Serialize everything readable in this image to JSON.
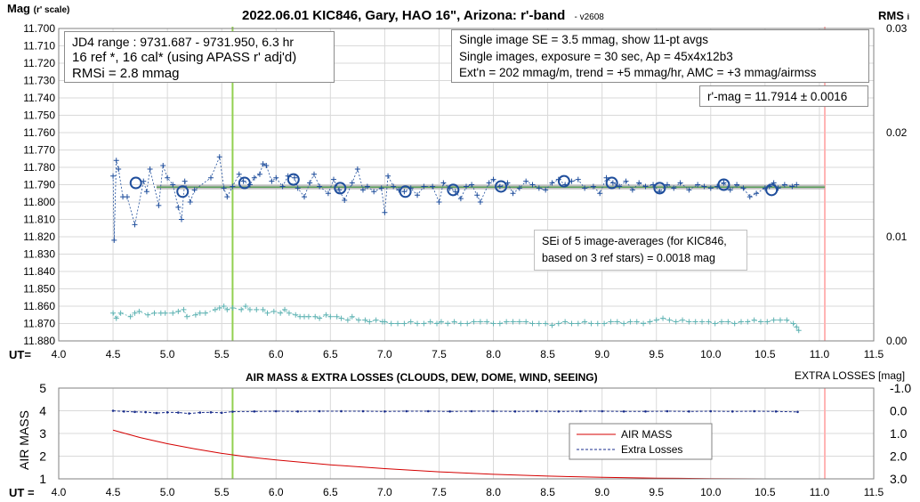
{
  "chart_data": [
    {
      "type": "scatter",
      "title": "2022.06.01 KIC846, Gary, HAO 16\", Arizona: r'-band",
      "version_tag": "- v2608",
      "ylabel": "Mag",
      "ylabel_suffix": "(r' scale)",
      "y2label": "RMS",
      "y2label_suffix": "i",
      "xlabel": "UT=",
      "xlim": [
        4.0,
        11.5
      ],
      "ylim": [
        11.7,
        11.88
      ],
      "ylim_inverted": true,
      "y2lim": [
        0.0,
        0.03
      ],
      "x_ticks": [
        "4.0",
        "4.5",
        "5.0",
        "5.5",
        "6.0",
        "6.5",
        "7.0",
        "7.5",
        "8.0",
        "8.5",
        "9.0",
        "9.5",
        "10.0",
        "10.5",
        "11.0",
        "11.5"
      ],
      "y_ticks": [
        "11.700",
        "11.710",
        "11.720",
        "11.730",
        "11.740",
        "11.750",
        "11.760",
        "11.770",
        "11.780",
        "11.790",
        "11.800",
        "11.810",
        "11.820",
        "11.830",
        "11.840",
        "11.850",
        "11.860",
        "11.870",
        "11.880"
      ],
      "y2_ticks": [
        "0.03",
        "0.02",
        "0.01",
        "0.00"
      ],
      "y2_tick_values": [
        0.03,
        0.02,
        0.01,
        0.0
      ],
      "grid": true,
      "vertical_markers": [
        {
          "x": 5.6,
          "color": "#92d050"
        },
        {
          "x": 11.05,
          "color": "#ffb3b3"
        }
      ],
      "fit_level": 11.7914,
      "fit_xrange": [
        4.9,
        11.05
      ],
      "series": [
        {
          "marker": "plus-dashed",
          "color": "#1f4e9c",
          "x": [
            4.5,
            4.51,
            4.53,
            4.55,
            4.59,
            4.63,
            4.7,
            4.78,
            4.81,
            4.84,
            4.92,
            4.96,
            5.0,
            5.05,
            5.1,
            5.13,
            5.16,
            5.21,
            5.25,
            5.4,
            5.48,
            5.52,
            5.55,
            5.6,
            5.66,
            5.7,
            5.76,
            5.8,
            5.85,
            5.88,
            5.91,
            5.96,
            6.0,
            6.06,
            6.11,
            6.17,
            6.2,
            6.26,
            6.31,
            6.35,
            6.4,
            6.48,
            6.53,
            6.58,
            6.63,
            6.7,
            6.75,
            6.8,
            6.84,
            6.9,
            6.97,
            7.0,
            7.03,
            7.08,
            7.13,
            7.18,
            7.24,
            7.3,
            7.36,
            7.44,
            7.5,
            7.54,
            7.6,
            7.65,
            7.7,
            7.75,
            7.8,
            7.85,
            7.88,
            7.96,
            8.0,
            8.06,
            8.13,
            8.18,
            8.24,
            8.3,
            8.36,
            8.42,
            8.48,
            8.54,
            8.6,
            8.66,
            8.72,
            8.78,
            8.84,
            8.92,
            8.98,
            9.04,
            9.1,
            9.16,
            9.22,
            9.28,
            9.34,
            9.4,
            9.47,
            9.53,
            9.6,
            9.66,
            9.72,
            9.8,
            9.88,
            9.94,
            10.0,
            10.06,
            10.12,
            10.18,
            10.24,
            10.3,
            10.36,
            10.42,
            10.5,
            10.54,
            10.58,
            10.62,
            10.68,
            10.75,
            10.79
          ],
          "values": [
            11.785,
            11.822,
            11.776,
            11.781,
            11.797,
            11.797,
            11.813,
            11.788,
            11.794,
            11.781,
            11.802,
            11.779,
            11.786,
            11.79,
            11.803,
            11.81,
            11.788,
            11.8,
            11.793,
            11.786,
            11.774,
            11.792,
            11.797,
            11.791,
            11.784,
            11.788,
            11.79,
            11.786,
            11.784,
            11.778,
            11.779,
            11.788,
            11.786,
            11.791,
            11.785,
            11.786,
            11.792,
            11.797,
            11.789,
            11.784,
            11.791,
            11.795,
            11.787,
            11.793,
            11.799,
            11.789,
            11.781,
            11.793,
            11.791,
            11.794,
            11.792,
            11.806,
            11.785,
            11.791,
            11.793,
            11.794,
            11.792,
            11.796,
            11.791,
            11.791,
            11.8,
            11.789,
            11.792,
            11.794,
            11.798,
            11.791,
            11.79,
            11.796,
            11.8,
            11.789,
            11.787,
            11.791,
            11.789,
            11.795,
            11.792,
            11.788,
            11.79,
            11.792,
            11.793,
            11.789,
            11.787,
            11.79,
            11.788,
            11.787,
            11.792,
            11.791,
            11.795,
            11.786,
            11.789,
            11.791,
            11.788,
            11.793,
            11.789,
            11.791,
            11.79,
            11.794,
            11.79,
            11.792,
            11.789,
            11.793,
            11.79,
            11.791,
            11.792,
            11.791,
            11.789,
            11.793,
            11.79,
            11.792,
            11.797,
            11.795,
            11.792,
            11.791,
            11.789,
            11.792,
            11.79,
            11.791,
            11.79
          ]
        },
        {
          "marker": "circle",
          "color": "#1f4e9c",
          "x": [
            4.71,
            5.14,
            5.71,
            6.16,
            6.59,
            7.19,
            7.63,
            8.07,
            8.65,
            9.09,
            9.53,
            10.12,
            10.56
          ],
          "values": [
            11.789,
            11.794,
            11.789,
            11.787,
            11.792,
            11.794,
            11.793,
            11.791,
            11.788,
            11.789,
            11.792,
            11.79,
            11.793
          ]
        },
        {
          "marker": "plus-dashed",
          "color": "#5fb3b3",
          "x": [
            4.5,
            4.53,
            4.57,
            4.66,
            4.7,
            4.74,
            4.82,
            4.88,
            4.94,
            4.98,
            5.05,
            5.1,
            5.15,
            5.18,
            5.26,
            5.3,
            5.35,
            5.44,
            5.48,
            5.52,
            5.55,
            5.6,
            5.68,
            5.72,
            5.76,
            5.82,
            5.88,
            5.92,
            5.98,
            6.04,
            6.08,
            6.12,
            6.18,
            6.22,
            6.26,
            6.3,
            6.36,
            6.4,
            6.46,
            6.5,
            6.56,
            6.6,
            6.66,
            6.7,
            6.76,
            6.82,
            6.86,
            6.92,
            6.98,
            7.0,
            7.06,
            7.12,
            7.18,
            7.24,
            7.3,
            7.36,
            7.42,
            7.48,
            7.52,
            7.58,
            7.64,
            7.7,
            7.76,
            7.82,
            7.88,
            7.94,
            8.0,
            8.06,
            8.12,
            8.18,
            8.24,
            8.3,
            8.36,
            8.42,
            8.48,
            8.54,
            8.6,
            8.66,
            8.72,
            8.78,
            8.84,
            8.9,
            8.96,
            9.02,
            9.08,
            9.14,
            9.2,
            9.26,
            9.32,
            9.38,
            9.44,
            9.5,
            9.56,
            9.62,
            9.68,
            9.74,
            9.8,
            9.86,
            9.92,
            9.98,
            10.04,
            10.1,
            10.16,
            10.22,
            10.28,
            10.34,
            10.4,
            10.46,
            10.52,
            10.58,
            10.64,
            10.7,
            10.76,
            10.79,
            10.81
          ],
          "values": [
            11.864,
            11.867,
            11.864,
            11.866,
            11.864,
            11.863,
            11.865,
            11.864,
            11.864,
            11.864,
            11.864,
            11.863,
            11.862,
            11.866,
            11.865,
            11.864,
            11.864,
            11.862,
            11.861,
            11.86,
            11.862,
            11.861,
            11.862,
            11.86,
            11.862,
            11.862,
            11.862,
            11.864,
            11.863,
            11.864,
            11.862,
            11.864,
            11.865,
            11.866,
            11.866,
            11.866,
            11.866,
            11.867,
            11.865,
            11.866,
            11.866,
            11.867,
            11.868,
            11.866,
            11.868,
            11.868,
            11.869,
            11.868,
            11.869,
            11.869,
            11.87,
            11.87,
            11.87,
            11.869,
            11.87,
            11.87,
            11.869,
            11.87,
            11.869,
            11.87,
            11.869,
            11.87,
            11.87,
            11.869,
            11.869,
            11.869,
            11.87,
            11.87,
            11.869,
            11.869,
            11.869,
            11.869,
            11.87,
            11.87,
            11.87,
            11.871,
            11.87,
            11.869,
            11.87,
            11.87,
            11.869,
            11.87,
            11.87,
            11.87,
            11.869,
            11.869,
            11.87,
            11.869,
            11.869,
            11.87,
            11.869,
            11.868,
            11.867,
            11.868,
            11.869,
            11.868,
            11.869,
            11.869,
            11.869,
            11.869,
            11.87,
            11.869,
            11.869,
            11.87,
            11.869,
            11.869,
            11.868,
            11.869,
            11.869,
            11.868,
            11.868,
            11.868,
            11.87,
            11.872,
            11.874
          ]
        }
      ],
      "annotations": {
        "box_left": [
          "JD4 range : 9731.687 - 9731.950,  6.3  hr",
          "16 ref *, 16 cal* (using APASS r' adj'd)",
          "RMSi = 2.8 mmag"
        ],
        "box_right": [
          "Single image SE = 3.5 mmag, show  11-pt avgs",
          "Single images, exposure = 30 sec, Ap = 45x4x12b3",
          "Ext'n = 202 mmag/m, trend = +5  mmag/hr, AMC = +3 mmag/airmss"
        ],
        "fit_label": "r'-mag = 11.7914 ± 0.0016",
        "sei_note": [
          "SEi of 5 image-averages (for KIC846,",
          "based on 3 ref stars) = 0.0018 mag"
        ]
      }
    },
    {
      "type": "line",
      "title": "AIR MASS & EXTRA LOSSES (CLOUDS, DEW, DOME, WIND, SEEING)",
      "ylabel": "AIR MASS",
      "y2label": "EXTRA LOSSES [mag]",
      "xlabel": "UT =",
      "xlim": [
        4.0,
        11.5
      ],
      "ylim": [
        1,
        5
      ],
      "y2lim": [
        3.0,
        -1.0
      ],
      "x_ticks": [
        "4.0",
        "4.5",
        "5.0",
        "5.5",
        "6.0",
        "6.5",
        "7.0",
        "7.5",
        "8.0",
        "8.5",
        "9.0",
        "9.5",
        "10.0",
        "10.5",
        "11.0",
        "11.5"
      ],
      "y_ticks": [
        "5",
        "4",
        "3",
        "2",
        "1"
      ],
      "y2_ticks": [
        "-1.0",
        "0.0",
        "1.0",
        "2.0",
        "3.0"
      ],
      "y2_tick_values": [
        -1.0,
        0.0,
        1.0,
        2.0,
        3.0
      ],
      "grid": true,
      "legend_position": "right",
      "vertical_markers": [
        {
          "x": 5.6,
          "color": "#92d050"
        },
        {
          "x": 11.05,
          "color": "#ffb3b3"
        }
      ],
      "series": [
        {
          "name": "AIR MASS",
          "color": "#d40000",
          "x": [
            4.5,
            4.75,
            5.0,
            5.25,
            5.5,
            5.75,
            6.0,
            6.5,
            7.0,
            7.5,
            8.0,
            8.5,
            9.0,
            9.5,
            10.0,
            10.5,
            10.8
          ],
          "values": [
            3.15,
            2.82,
            2.55,
            2.32,
            2.12,
            1.96,
            1.83,
            1.62,
            1.45,
            1.31,
            1.2,
            1.12,
            1.07,
            1.03,
            1.01,
            1.0,
            1.0
          ]
        },
        {
          "name": "Extra Losses",
          "color": "#1a2e8c",
          "x": [
            4.5,
            4.6,
            4.7,
            4.8,
            4.9,
            5.0,
            5.1,
            5.2,
            5.3,
            5.4,
            5.5,
            5.6,
            5.8,
            6.0,
            6.2,
            6.4,
            6.6,
            6.8,
            7.0,
            7.2,
            7.4,
            7.6,
            7.8,
            8.0,
            8.2,
            8.4,
            8.6,
            8.8,
            9.0,
            9.2,
            9.4,
            9.6,
            9.8,
            10.0,
            10.2,
            10.4,
            10.6,
            10.8
          ],
          "values": [
            0.0,
            0.03,
            0.05,
            0.06,
            0.1,
            0.07,
            0.08,
            0.12,
            0.08,
            0.07,
            0.09,
            0.04,
            0.03,
            0.02,
            0.03,
            0.02,
            0.02,
            0.02,
            0.03,
            0.02,
            0.02,
            0.03,
            0.02,
            0.02,
            0.03,
            0.02,
            0.03,
            0.02,
            0.02,
            0.03,
            0.03,
            0.02,
            0.03,
            0.02,
            0.03,
            0.02,
            0.03,
            0.05
          ]
        }
      ]
    }
  ]
}
